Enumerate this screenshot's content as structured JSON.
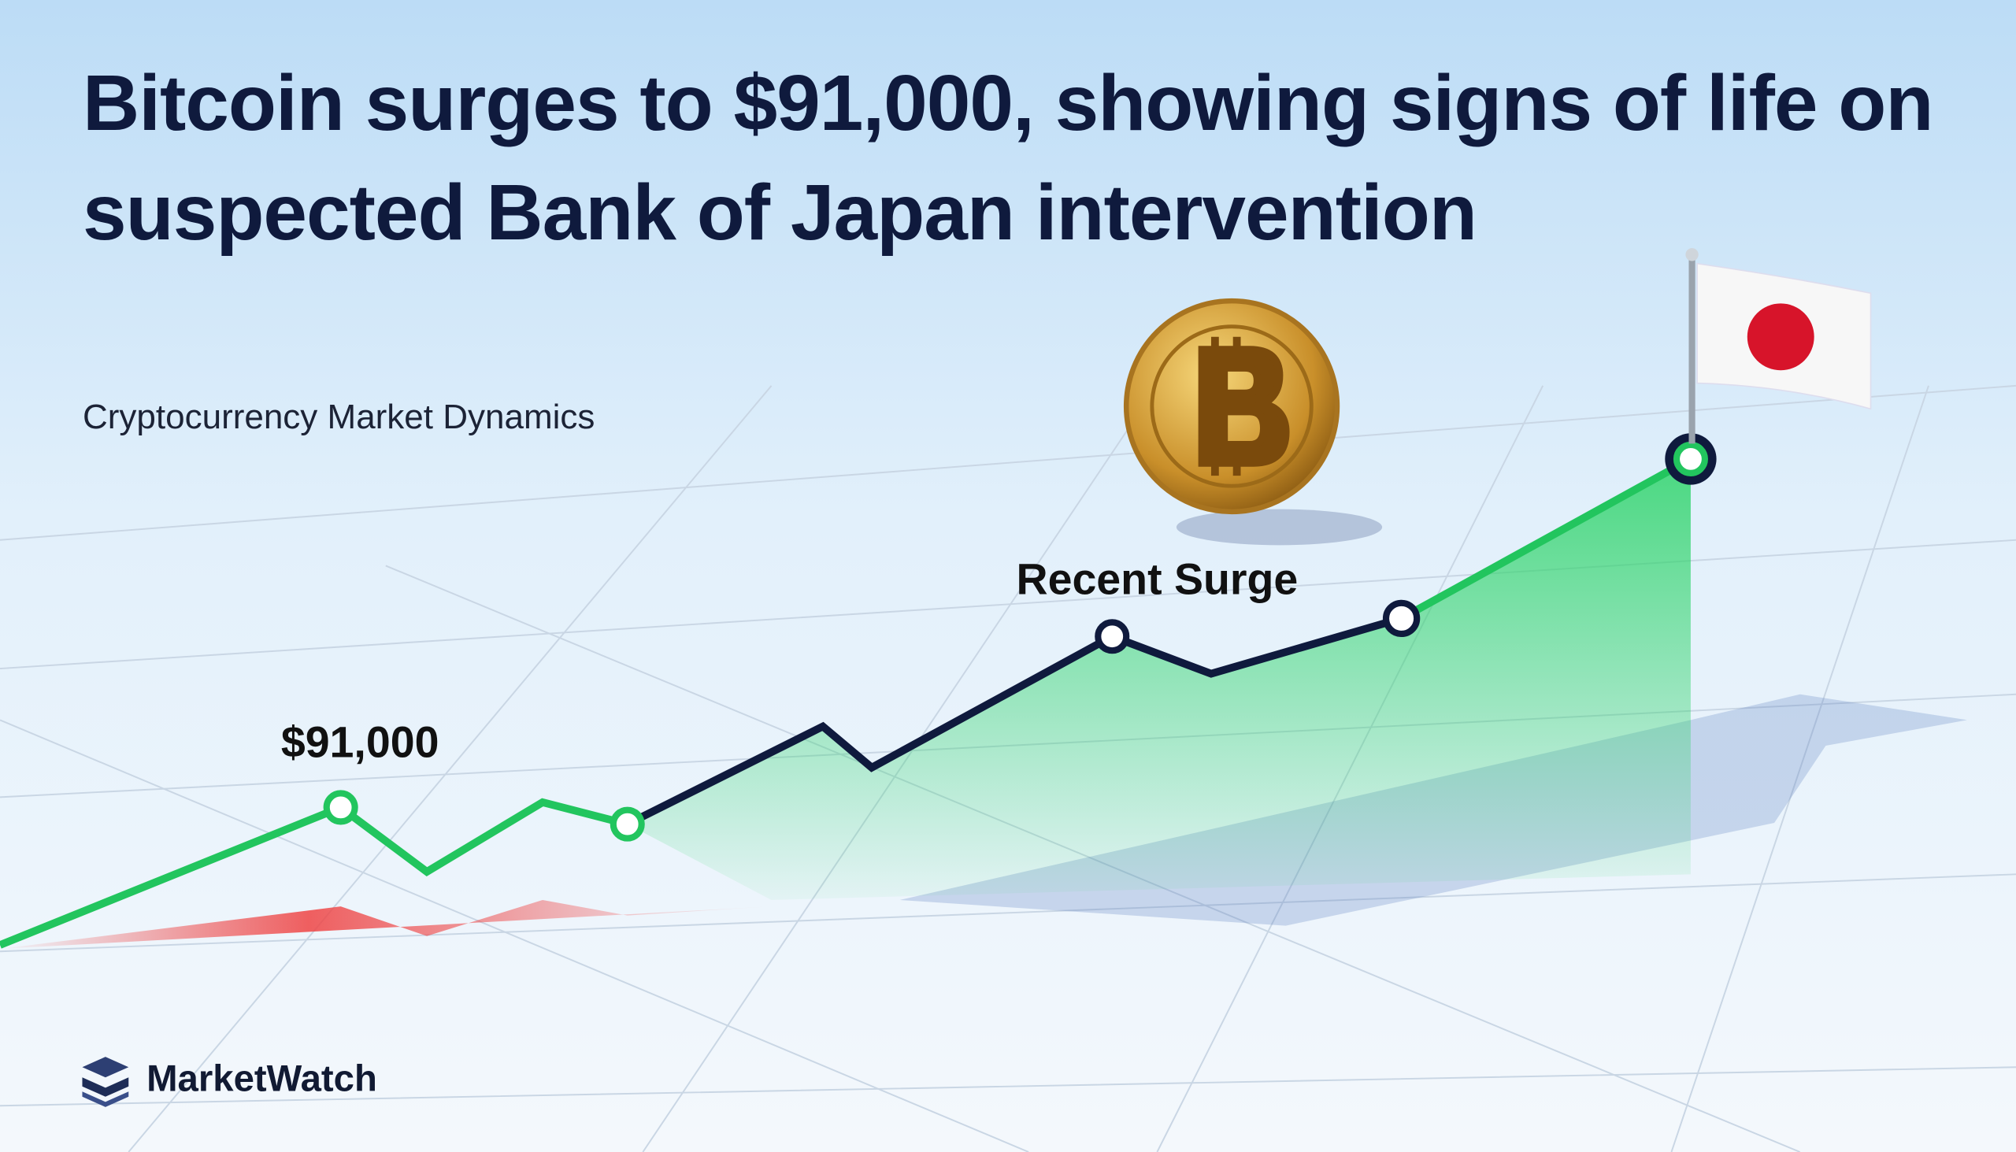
{
  "header": {
    "title": "Bitcoin surges to $91,000, showing signs of life on suspected Bank of Japan intervention",
    "subtitle": "Cryptocurrency Market Dynamics"
  },
  "annotations": {
    "price": "$91,000",
    "surge": "Recent Surge"
  },
  "brand": "MarketWatch"
}
